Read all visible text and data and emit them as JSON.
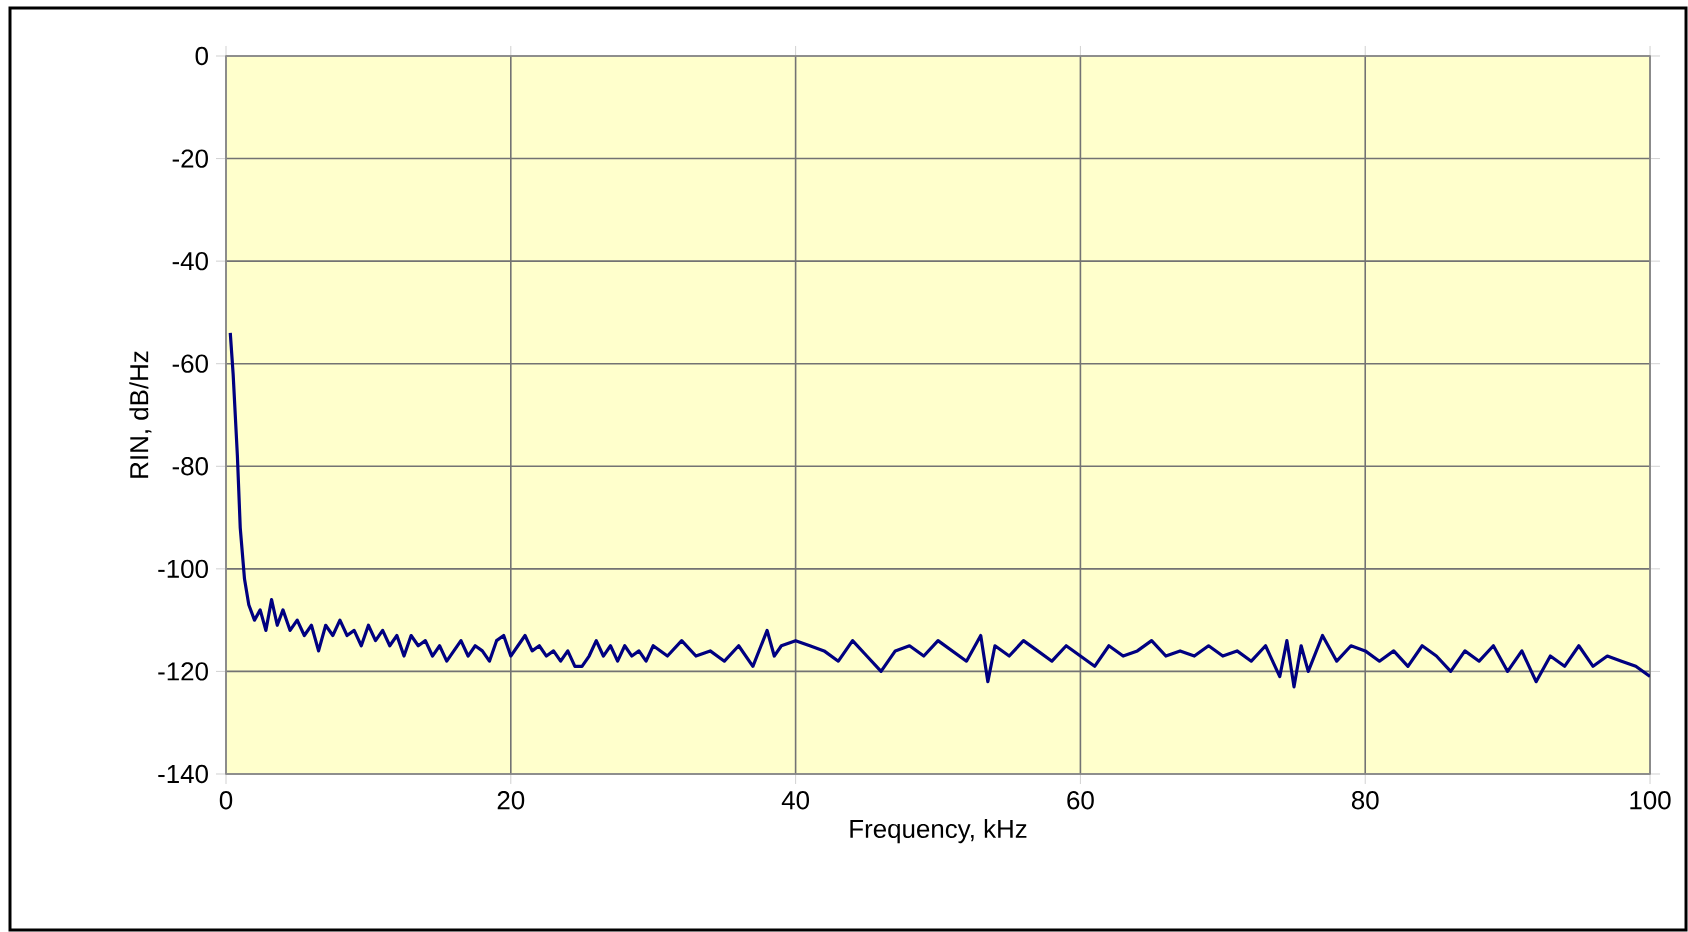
{
  "chart_data": {
    "type": "line",
    "xlabel": "Frequency, kHz",
    "ylabel": "RIN, dB/Hz",
    "xlim": [
      0,
      100
    ],
    "xticks": [
      0,
      20,
      40,
      60,
      80,
      100
    ],
    "ylim": [
      -140,
      0
    ],
    "yticks": [
      -140,
      -120,
      -100,
      -80,
      -60,
      -40,
      -20,
      0
    ],
    "grid": true,
    "series": [
      {
        "color": "#000080",
        "x": [
          0.3,
          0.5,
          0.8,
          1.0,
          1.3,
          1.6,
          2.0,
          2.4,
          2.8,
          3.2,
          3.6,
          4.0,
          4.5,
          5.0,
          5.5,
          6.0,
          6.5,
          7.0,
          7.5,
          8.0,
          8.5,
          9.0,
          9.5,
          10,
          10.5,
          11,
          11.5,
          12,
          12.5,
          13,
          13.5,
          14,
          14.5,
          15,
          15.5,
          16,
          16.5,
          17,
          17.5,
          18,
          18.5,
          19,
          19.5,
          20,
          20.5,
          21,
          21.5,
          22,
          22.5,
          23,
          23.5,
          24,
          24.5,
          25,
          25.5,
          26,
          26.5,
          27,
          27.5,
          28,
          28.5,
          29,
          29.5,
          30,
          31,
          32,
          33,
          34,
          35,
          36,
          37,
          38,
          38.5,
          39,
          40,
          41,
          42,
          43,
          44,
          45,
          46,
          47,
          48,
          49,
          50,
          51,
          52,
          53,
          53.5,
          54,
          55,
          56,
          57,
          58,
          59,
          60,
          61,
          62,
          63,
          64,
          65,
          66,
          67,
          68,
          69,
          70,
          71,
          72,
          73,
          74,
          74.5,
          75,
          75.5,
          76,
          77,
          78,
          79,
          80,
          81,
          82,
          83,
          84,
          85,
          86,
          87,
          88,
          89,
          90,
          91,
          92,
          93,
          94,
          95,
          96,
          97,
          98,
          99,
          100
        ],
        "values": [
          -54,
          -62,
          -78,
          -92,
          -102,
          -107,
          -110,
          -108,
          -112,
          -106,
          -111,
          -108,
          -112,
          -110,
          -113,
          -111,
          -116,
          -111,
          -113,
          -110,
          -113,
          -112,
          -115,
          -111,
          -114,
          -112,
          -115,
          -113,
          -117,
          -113,
          -115,
          -114,
          -117,
          -115,
          -118,
          -116,
          -114,
          -117,
          -115,
          -116,
          -118,
          -114,
          -113,
          -117,
          -115,
          -113,
          -116,
          -115,
          -117,
          -116,
          -118,
          -116,
          -119,
          -119,
          -117,
          -114,
          -117,
          -115,
          -118,
          -115,
          -117,
          -116,
          -118,
          -115,
          -117,
          -114,
          -117,
          -116,
          -118,
          -115,
          -119,
          -112,
          -117,
          -115,
          -114,
          -115,
          -116,
          -118,
          -114,
          -117,
          -120,
          -116,
          -115,
          -117,
          -114,
          -116,
          -118,
          -113,
          -122,
          -115,
          -117,
          -114,
          -116,
          -118,
          -115,
          -117,
          -119,
          -115,
          -117,
          -116,
          -114,
          -117,
          -116,
          -117,
          -115,
          -117,
          -116,
          -118,
          -115,
          -121,
          -114,
          -123,
          -115,
          -120,
          -113,
          -118,
          -115,
          -116,
          -118,
          -116,
          -119,
          -115,
          -117,
          -120,
          -116,
          -118,
          -115,
          -120,
          -116,
          -122,
          -117,
          -119,
          -115,
          -119,
          -117,
          -118,
          -119,
          -121
        ]
      }
    ]
  }
}
